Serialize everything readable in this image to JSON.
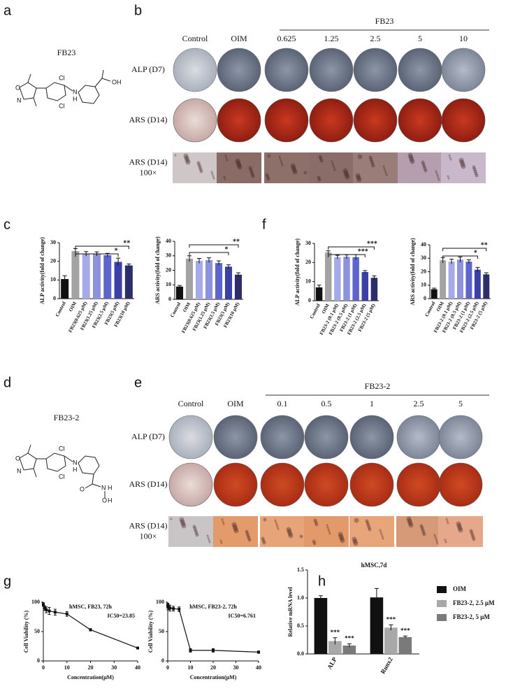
{
  "panel_letters": [
    "a",
    "b",
    "c",
    "d",
    "e",
    "f",
    "g",
    "h"
  ],
  "panel_a": {
    "compound": "FB23",
    "atoms": [
      "O",
      "N",
      "Cl",
      "Cl",
      "N",
      "H",
      "OH"
    ]
  },
  "panel_b": {
    "group_label": "FB23",
    "columns": [
      "Control",
      "OIM",
      "0.625",
      "1.25",
      "2.5",
      "5",
      "10"
    ],
    "rows": [
      [
        "ALP (D7)"
      ],
      [
        "ARS (D14)"
      ],
      [
        "ARS (D14)",
        "100×"
      ]
    ]
  },
  "panel_d": {
    "compound": "FB23-2",
    "atoms": [
      "O",
      "N",
      "Cl",
      "Cl",
      "N",
      "H",
      "O",
      "N",
      "H",
      "O",
      "H"
    ]
  },
  "panel_e": {
    "group_label": "FB23-2",
    "columns": [
      "Control",
      "OIM",
      "0.1",
      "0.5",
      "1",
      "2.5",
      "5"
    ],
    "rows": [
      [
        "ALP (D7)"
      ],
      [
        "ARS (D14)"
      ],
      [
        "ARS (D14)",
        "100×"
      ]
    ]
  },
  "chart_data": [
    {
      "type": "bar",
      "ylabel": "ALP activity(fold of change)",
      "categories": [
        "Control",
        "OIM",
        "FB23(0.625 μM)",
        "FB23(1.25 μM)",
        "FB23(2.5 μM)",
        "FB23(5 μM)",
        "FB23(10 μM)"
      ],
      "values": [
        10.5,
        25.5,
        24,
        24,
        23.3,
        19.7,
        17.8
      ],
      "errors": [
        1.8,
        1.3,
        1.2,
        1.1,
        1.0,
        2.0,
        0.8
      ],
      "colors": [
        "#111111",
        "#a3a3a3",
        "#a6aae8",
        "#8e92de",
        "#5d64cc",
        "#3b40a8",
        "#2c2e6c"
      ],
      "ylim": [
        0,
        30
      ],
      "yticks": [
        0,
        10,
        20,
        30
      ],
      "significance": [
        "**",
        "*"
      ]
    },
    {
      "type": "bar",
      "ylabel": "ARS activity(fold of change)",
      "categories": [
        "Control",
        "OIM",
        "FB23(0.625 μM)",
        "FB23(1.25 μM)",
        "FB23(2.5 μM)",
        "FB23(5 μM)",
        "FB23(10 μM)"
      ],
      "values": [
        8.8,
        28,
        26.5,
        27,
        25,
        22.5,
        17
      ],
      "errors": [
        0.8,
        2.0,
        1.7,
        1.6,
        1.5,
        1.3,
        1.3
      ],
      "colors": [
        "#111111",
        "#a3a3a3",
        "#a6aae8",
        "#8e92de",
        "#5d64cc",
        "#3b40a8",
        "#2c2e6c"
      ],
      "ylim": [
        0,
        40
      ],
      "yticks": [
        0,
        10,
        20,
        30,
        40
      ],
      "significance": [
        "**",
        "*"
      ]
    },
    {
      "type": "bar",
      "ylabel": "ALP activity(fold of change)",
      "categories": [
        "Control",
        "OIM",
        "FB23-2 (0.1 μM)",
        "FB23-2 (0.5 μM)",
        "FB23-2 (1 μM)",
        "FB23-2 (2.5 μM)",
        "FB23-2 (5 μM)"
      ],
      "values": [
        7,
        25.3,
        22.8,
        23,
        22.8,
        15,
        12
      ],
      "errors": [
        1.2,
        0.8,
        1.0,
        1.0,
        1.3,
        0.8,
        1.0
      ],
      "colors": [
        "#111111",
        "#a3a3a3",
        "#a6aae8",
        "#8e92de",
        "#5d64cc",
        "#3b40a8",
        "#2c2e6c"
      ],
      "ylim": [
        0,
        30
      ],
      "yticks": [
        0,
        10,
        20,
        30
      ],
      "significance": [
        "***",
        "***"
      ]
    },
    {
      "type": "bar",
      "ylabel": "ARS activity(fold of change)",
      "categories": [
        "Control",
        "OIM",
        "FB23-2 (0.1 μM)",
        "FB23-2 (0.5 μM)",
        "FB23-2 (1 μM)",
        "FB23-2 (2.5 μM)",
        "FB23-2 (5 μM)"
      ],
      "values": [
        7,
        28.5,
        27.5,
        29,
        27.5,
        21.5,
        18
      ],
      "errors": [
        0.8,
        2.0,
        1.8,
        2.0,
        1.3,
        1.7,
        1.2
      ],
      "colors": [
        "#111111",
        "#a3a3a3",
        "#a6aae8",
        "#8e92de",
        "#5d64cc",
        "#3b40a8",
        "#2c2e6c"
      ],
      "ylim": [
        0,
        40
      ],
      "yticks": [
        0,
        10,
        20,
        30,
        40
      ],
      "significance": [
        "**",
        "*"
      ]
    },
    {
      "type": "line",
      "title": "hMSC, FB23, 72h",
      "annotation": "IC50=23.85",
      "xlabel": "Concentration(μM)",
      "ylabel": "Cell Viability (%)",
      "x": [
        0,
        0.625,
        1.25,
        2.5,
        5,
        10,
        20,
        40
      ],
      "values": [
        96,
        90,
        87,
        85,
        83,
        80,
        53,
        22
      ],
      "errors": [
        3,
        4,
        5,
        6,
        5,
        4,
        2,
        1
      ],
      "color": "#111111",
      "xlim": [
        0,
        40
      ],
      "xticks": [
        0,
        10,
        20,
        30,
        40
      ],
      "ylim": [
        0,
        100
      ],
      "yticks": [
        0,
        50,
        100
      ]
    },
    {
      "type": "line",
      "title": "hMSC, FB23-2, 72h",
      "annotation": "IC50=6.761",
      "xlabel": "Concentration(μM)",
      "ylabel": "Cell Viability (%)",
      "x": [
        0,
        0.1,
        0.5,
        1,
        2.5,
        5,
        10,
        20,
        40
      ],
      "values": [
        94,
        92,
        91,
        90,
        89,
        88,
        18,
        18,
        15
      ],
      "errors": [
        4,
        5,
        4,
        5,
        4,
        4,
        3,
        3,
        2
      ],
      "color": "#111111",
      "xlim": [
        0,
        40
      ],
      "xticks": [
        0,
        10,
        20,
        30,
        40
      ],
      "ylim": [
        0,
        100
      ],
      "yticks": [
        0,
        50,
        100
      ]
    },
    {
      "type": "groupbar",
      "title": "hMSC,7d",
      "ylabel": "Relative mRNA level",
      "categories": [
        "ALP",
        "Runx2"
      ],
      "series": [
        {
          "name": "OIM",
          "color": "#111111",
          "values": [
            1.0,
            1.01
          ],
          "errors": [
            0.04,
            0.16
          ]
        },
        {
          "name": "FB23-2, 2.5 μM",
          "color": "#a8a8a8",
          "values": [
            0.23,
            0.47
          ],
          "errors": [
            0.06,
            0.05
          ]
        },
        {
          "name": "FB23-2, 5 μM",
          "color": "#7a7a7a",
          "values": [
            0.15,
            0.3
          ],
          "errors": [
            0.03,
            0.02
          ]
        }
      ],
      "ylim": [
        0,
        1.5
      ],
      "yticks": [
        {
          "value": 0,
          "label": "0.0"
        },
        0.5,
        {
          "value": 1,
          "label": "1.0"
        },
        1.5
      ],
      "annotations": [
        "***",
        "***",
        "***",
        "***"
      ]
    }
  ]
}
